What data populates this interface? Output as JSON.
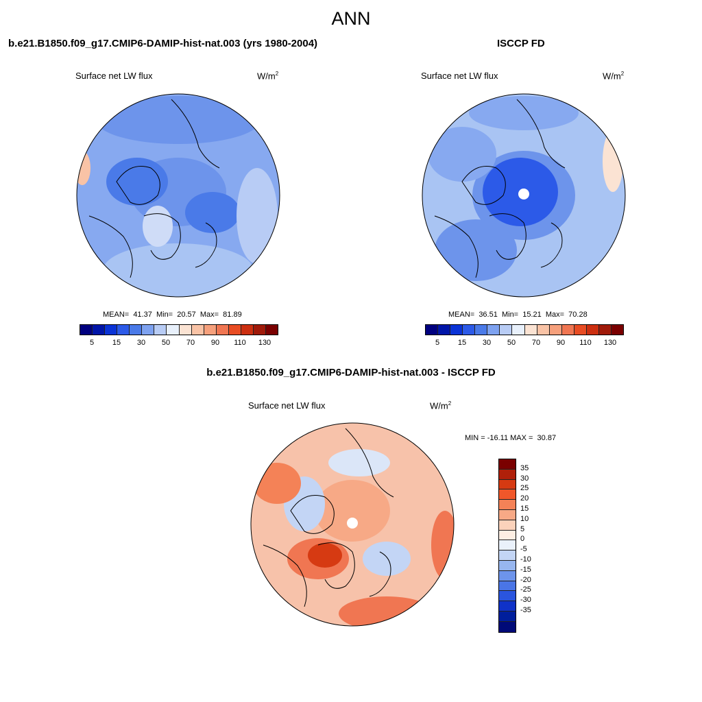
{
  "figure": {
    "title": "ANN"
  },
  "panels": [
    {
      "title": "b.e21.B1850.f09_g17.CMIP6-DAMIP-hist-nat.003 (yrs 1980-2004)",
      "variable": "Surface net LW flux",
      "units": "W/m",
      "units_exp": "2",
      "stats": "MEAN=  41.37  Min=  20.57  Max=  81.89",
      "base_color": "#87a9f0"
    },
    {
      "title": "ISCCP FD",
      "variable": "Surface net LW flux",
      "units": "W/m",
      "units_exp": "2",
      "stats": "MEAN=  36.51  Min=  15.21  Max=  70.28",
      "base_color": "#a9c4f3"
    },
    {
      "title": "b.e21.B1850.f09_g17.CMIP6-DAMIP-hist-nat.003 - ISCCP FD",
      "variable": "Surface net LW flux",
      "units": "W/m",
      "units_exp": "2",
      "stats": "MIN = -16.11 MAX =  30.87",
      "base_color": "#f7c2aa"
    }
  ],
  "colorbar_top": {
    "colors": [
      "#00007f",
      "#0015a8",
      "#0a33d6",
      "#2c5ae8",
      "#4a7ae8",
      "#7ea2f0",
      "#b8ccf5",
      "#e8f0fb",
      "#fbe3d3",
      "#f9c3a6",
      "#f6a07c",
      "#f07652",
      "#e84c23",
      "#cc2f10",
      "#a01a0a",
      "#7a0000"
    ],
    "ticks": [
      "5",
      "15",
      "30",
      "50",
      "70",
      "90",
      "110",
      "130"
    ]
  },
  "colorbar_diff": {
    "colors": [
      "#7a0000",
      "#b0200a",
      "#d63a12",
      "#f0572a",
      "#f48257",
      "#f7a986",
      "#fbd2bb",
      "#fdeee3",
      "#eaf1fb",
      "#c3d5f5",
      "#97b6ef",
      "#6d94eb",
      "#4a75e6",
      "#2a55df",
      "#0f32c8",
      "#001e9c",
      "#000a78"
    ],
    "ticks": [
      "35",
      "30",
      "25",
      "20",
      "15",
      "10",
      "5",
      "0",
      "-5",
      "-10",
      "-15",
      "-20",
      "-25",
      "-30",
      "-35"
    ]
  }
}
